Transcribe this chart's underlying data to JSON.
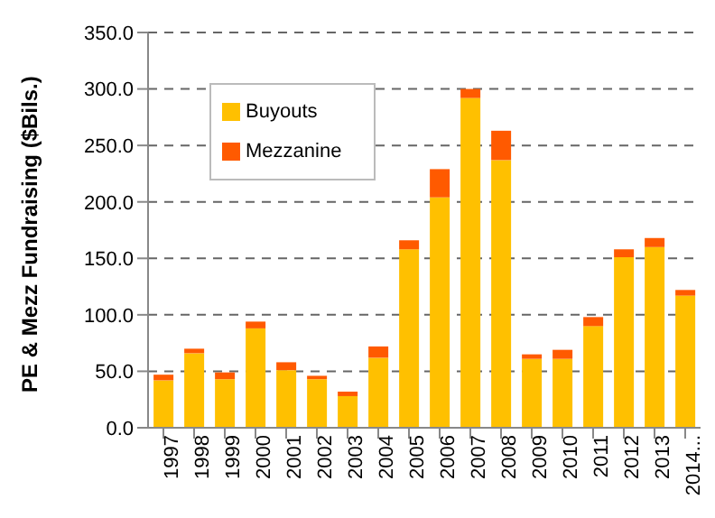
{
  "chart_data": {
    "type": "bar",
    "ylabel": "PE & Mezz Fundraising ($Bils.)",
    "stacked": true,
    "categories": [
      "1997",
      "1998",
      "1999",
      "2000",
      "2001",
      "2002",
      "2003",
      "2004",
      "2005",
      "2006",
      "2007",
      "2008",
      "2009",
      "2010",
      "2011",
      "2012",
      "2013",
      "2014..."
    ],
    "series": [
      {
        "name": "Buyouts",
        "color": "#ffc000",
        "values": [
          42,
          66,
          43,
          88,
          51,
          43,
          28,
          62,
          158,
          204,
          292,
          237,
          61,
          61,
          90,
          151,
          160,
          117
        ]
      },
      {
        "name": "Mezzanine",
        "color": "#ff5a00",
        "values": [
          5,
          4,
          6,
          6,
          7,
          3,
          4,
          10,
          8,
          25,
          8,
          26,
          4,
          8,
          8,
          7,
          8,
          5
        ]
      }
    ],
    "ylim": [
      0,
      350
    ],
    "yticks": [
      {
        "value": 0,
        "label": "0.0"
      },
      {
        "value": 50,
        "label": "50.0"
      },
      {
        "value": 100,
        "label": "100.0"
      },
      {
        "value": 150,
        "label": "150.0"
      },
      {
        "value": 200,
        "label": "200.0"
      },
      {
        "value": 250,
        "label": "250.0"
      },
      {
        "value": 300,
        "label": "300.0"
      },
      {
        "value": 350,
        "label": "350.0"
      }
    ],
    "grid": "y",
    "legend": "top left"
  }
}
